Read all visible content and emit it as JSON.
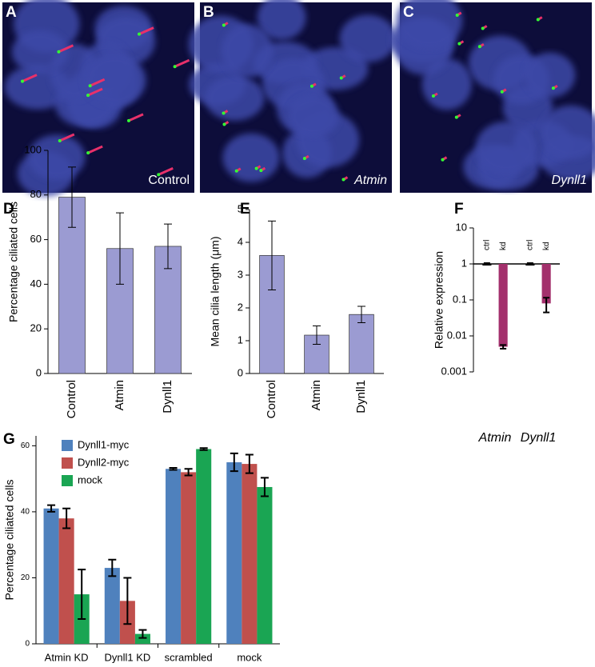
{
  "images": [
    {
      "label": "A",
      "caption": "Control"
    },
    {
      "label": "B",
      "caption": "Atmin"
    },
    {
      "label": "C",
      "caption": "Dynll1"
    }
  ],
  "chart_data": [
    {
      "type": "bar",
      "panel_label": "D",
      "ylabel": "Percentage ciliated cells",
      "categories": [
        "Control",
        "Atmin",
        "Dynll1"
      ],
      "values": [
        79,
        56,
        57
      ],
      "errors": [
        13.5,
        16,
        10
      ],
      "color": "#9b9bd2",
      "ylim": [
        0,
        100
      ],
      "yticks": [
        0,
        20,
        40,
        60,
        80,
        100
      ]
    },
    {
      "type": "bar",
      "panel_label": "E",
      "ylabel": "Mean cilia length (μm)",
      "categories": [
        "Control",
        "Atmin",
        "Dynll1"
      ],
      "values": [
        3.6,
        1.17,
        1.8
      ],
      "errors": [
        1.05,
        0.28,
        0.25
      ],
      "color": "#9b9bd2",
      "ylim": [
        0,
        5
      ],
      "yticks": [
        0,
        1,
        2,
        3,
        4,
        5
      ]
    },
    {
      "type": "bar",
      "panel_label": "F",
      "ylabel": "Relative expression",
      "log": true,
      "categories": [
        "Atmin",
        "Dynll1"
      ],
      "series": [
        {
          "name": "ctrl",
          "color": "#000000",
          "values": [
            1,
            1
          ],
          "errors": [
            0.05,
            0.05
          ]
        },
        {
          "name": "kd",
          "color": "#a3306c",
          "values": [
            0.005,
            0.08
          ],
          "errors": [
            0.0006,
            0.035
          ]
        }
      ],
      "ylim": [
        0.001,
        10
      ],
      "yticks": [
        0.001,
        0.01,
        0.1,
        1,
        10
      ]
    },
    {
      "type": "bar",
      "panel_label": "G",
      "ylabel": "Percentage ciliated cells",
      "categories": [
        "Atmin KD",
        "Dynll1 KD",
        "scrambled",
        "mock"
      ],
      "series": [
        {
          "name": "Dynll1-myc",
          "color": "#4f81bd",
          "values": [
            41,
            23,
            53,
            55
          ],
          "errors": [
            1,
            2.5,
            0.3,
            2.7
          ]
        },
        {
          "name": "Dynll2-myc",
          "color": "#c0504d",
          "values": [
            38,
            13,
            52,
            54.5
          ],
          "errors": [
            3,
            7,
            1,
            2.8
          ]
        },
        {
          "name": "mock",
          "color": "#1aa553",
          "values": [
            15,
            3,
            59,
            47.5
          ],
          "errors": [
            7.5,
            1.2,
            0.3,
            2.8
          ]
        }
      ],
      "ylim": [
        0,
        63
      ],
      "yticks": [
        0,
        20,
        40,
        60
      ],
      "legend": "top-left"
    }
  ]
}
